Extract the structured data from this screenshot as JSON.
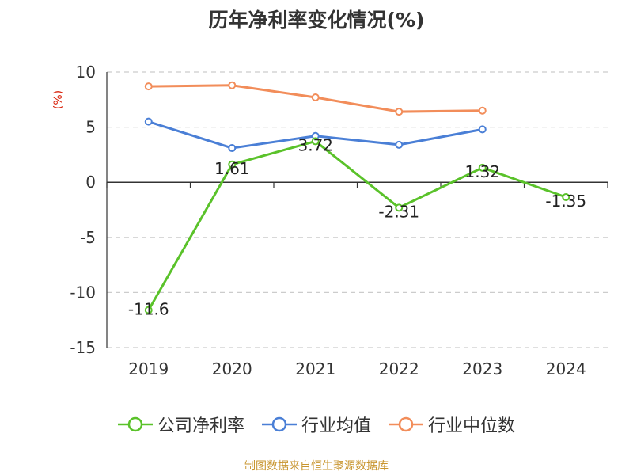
{
  "chart_data": {
    "type": "line",
    "title": "历年净利率变化情况(%)",
    "ylabel": "(%)",
    "categories": [
      "2019",
      "2020",
      "2021",
      "2022",
      "2023",
      "2024"
    ],
    "ylim": [
      -15,
      10
    ],
    "yticks": [
      10,
      5,
      0,
      -5,
      -10,
      -15
    ],
    "grid": true,
    "legend_position": "bottom",
    "series": [
      {
        "name": "公司净利率",
        "color": "#5ac22a",
        "values": [
          -11.6,
          1.61,
          3.72,
          -2.31,
          1.32,
          -1.35
        ],
        "labels": [
          "-11.6",
          "1.61",
          "3.72",
          "-2.31",
          "1.32",
          "-1.35"
        ]
      },
      {
        "name": "行业均值",
        "color": "#4a7fd6",
        "values": [
          5.5,
          3.1,
          4.2,
          3.4,
          4.8,
          null
        ]
      },
      {
        "name": "行业中位数",
        "color": "#f28d5a",
        "values": [
          8.7,
          8.8,
          7.7,
          6.4,
          6.5,
          null
        ]
      }
    ]
  },
  "source": "制图数据来自恒生聚源数据库"
}
